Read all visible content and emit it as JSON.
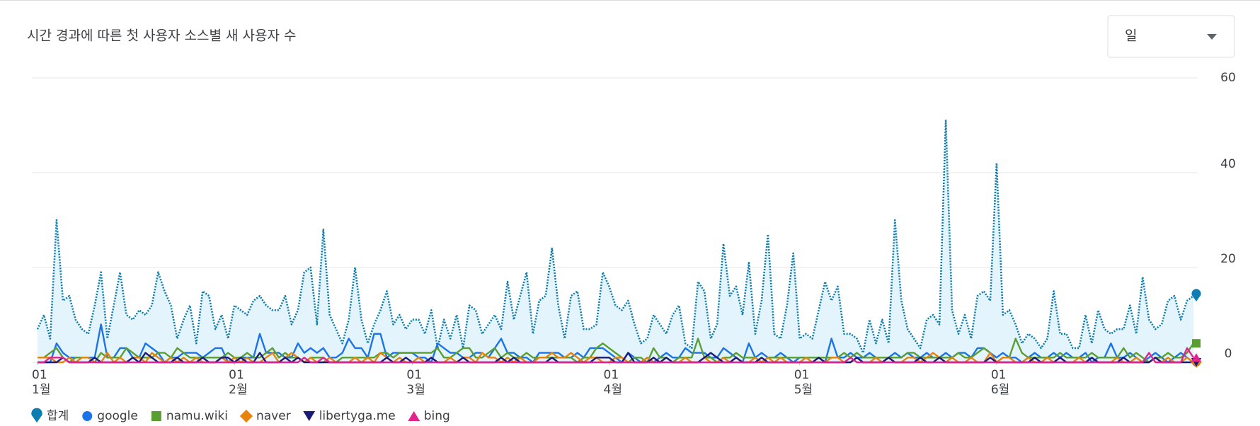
{
  "chart_data": {
    "type": "line",
    "title": "시간 경과에 따른 첫 사용자 소스별 새 사용자 수",
    "dropdown": "일",
    "categories": [
      "01-01",
      "01-02",
      "01-03",
      "01-04",
      "01-05",
      "01-06",
      "01-07",
      "01-08",
      "01-09",
      "01-10",
      "01-11",
      "01-12",
      "01-13",
      "01-14",
      "01-15",
      "01-16",
      "01-17",
      "01-18",
      "01-19",
      "01-20",
      "01-21",
      "01-22",
      "01-23",
      "01-24",
      "01-25",
      "01-26",
      "01-27",
      "01-28",
      "01-29",
      "01-30",
      "01-31",
      "02-01",
      "02-02",
      "02-03",
      "02-04",
      "02-05",
      "02-06",
      "02-07",
      "02-08",
      "02-09",
      "02-10",
      "02-11",
      "02-12",
      "02-13",
      "02-14",
      "02-15",
      "02-16",
      "02-17",
      "02-18",
      "02-19",
      "02-20",
      "02-21",
      "02-22",
      "02-23",
      "02-24",
      "02-25",
      "02-26",
      "02-27",
      "02-28",
      "03-01",
      "03-02",
      "03-03",
      "03-04",
      "03-05",
      "03-06",
      "03-07",
      "03-08",
      "03-09",
      "03-10",
      "03-11",
      "03-12",
      "03-13",
      "03-14",
      "03-15",
      "03-16",
      "03-17",
      "03-18",
      "03-19",
      "03-20",
      "03-21",
      "03-22",
      "03-23",
      "03-24",
      "03-25",
      "03-26",
      "03-27",
      "03-28",
      "03-29",
      "03-30",
      "03-31",
      "04-01",
      "04-02",
      "04-03",
      "04-04",
      "04-05",
      "04-06",
      "04-07",
      "04-08",
      "04-09",
      "04-10",
      "04-11",
      "04-12",
      "04-13",
      "04-14",
      "04-15",
      "04-16",
      "04-17",
      "04-18",
      "04-19",
      "04-20",
      "04-21",
      "04-22",
      "04-23",
      "04-24",
      "04-25",
      "04-26",
      "04-27",
      "04-28",
      "04-29",
      "04-30",
      "05-01",
      "05-02",
      "05-03",
      "05-04",
      "05-05",
      "05-06",
      "05-07",
      "05-08",
      "05-09",
      "05-10",
      "05-11",
      "05-12",
      "05-13",
      "05-14",
      "05-15",
      "05-16",
      "05-17",
      "05-18",
      "05-19",
      "05-20",
      "05-21",
      "05-22",
      "05-23",
      "05-24",
      "05-25",
      "05-26",
      "05-27",
      "05-28",
      "05-29",
      "05-30",
      "05-31",
      "06-01",
      "06-02",
      "06-03",
      "06-04",
      "06-05",
      "06-06",
      "06-07",
      "06-08",
      "06-09",
      "06-10",
      "06-11",
      "06-12",
      "06-13",
      "06-14",
      "06-15",
      "06-16",
      "06-17",
      "06-18",
      "06-19",
      "06-20",
      "06-21",
      "06-22",
      "06-23",
      "06-24",
      "06-25",
      "06-26",
      "06-27",
      "06-28",
      "06-29",
      "06-30",
      "07-01",
      "07-02"
    ],
    "xticks": [
      {
        "value": "01-01",
        "day": "01",
        "month": "1월"
      },
      {
        "value": "02-01",
        "day": "01",
        "month": "2월"
      },
      {
        "value": "03-01",
        "day": "01",
        "month": "3월"
      },
      {
        "value": "04-01",
        "day": "01",
        "month": "4월"
      },
      {
        "value": "05-01",
        "day": "01",
        "month": "5월"
      },
      {
        "value": "06-01",
        "day": "01",
        "month": "6월"
      }
    ],
    "ylim": [
      0,
      60
    ],
    "yticks": [
      0,
      20,
      40,
      60
    ],
    "grid": true,
    "series": [
      {
        "name": "합계",
        "color": "#0b7db0",
        "marker": "pin",
        "dotted": true,
        "area": "#e4f4fc",
        "values": [
          7,
          10,
          5,
          30,
          13,
          14,
          9,
          7,
          6,
          12,
          19,
          5,
          12,
          19,
          10,
          9,
          11,
          10,
          12,
          19,
          15,
          12,
          5,
          9,
          12,
          4,
          15,
          14,
          7,
          10,
          5,
          12,
          11,
          10,
          13,
          14,
          12,
          11,
          11,
          14,
          8,
          11,
          19,
          20,
          8,
          28,
          10,
          7,
          4,
          9,
          20,
          9,
          4,
          8,
          11,
          15,
          8,
          10,
          7,
          9,
          9,
          6,
          11,
          3,
          9,
          5,
          10,
          3,
          12,
          11,
          6,
          8,
          10,
          7,
          17,
          9,
          14,
          19,
          6,
          13,
          14,
          24,
          12,
          5,
          14,
          15,
          7,
          7,
          8,
          19,
          16,
          12,
          11,
          13,
          8,
          4,
          5,
          10,
          8,
          6,
          10,
          12,
          4,
          3,
          17,
          15,
          5,
          8,
          25,
          14,
          16,
          10,
          21,
          6,
          13,
          27,
          6,
          5,
          12,
          23,
          5,
          6,
          5,
          11,
          17,
          13,
          16,
          6,
          6,
          5,
          2,
          9,
          4,
          9,
          4,
          30,
          13,
          7,
          5,
          3,
          9,
          10,
          8,
          51,
          11,
          6,
          10,
          5,
          14,
          15,
          13,
          42,
          10,
          11,
          8,
          4,
          6,
          5,
          3,
          5,
          15,
          6,
          6,
          3,
          3,
          10,
          4,
          11,
          7,
          6,
          7,
          7,
          12,
          6,
          18,
          9,
          7,
          8,
          13,
          14,
          9,
          13,
          14
        ]
      },
      {
        "name": "google",
        "color": "#1a73e8",
        "marker": "circle",
        "values": [
          0,
          0,
          0,
          4,
          2,
          1,
          1,
          1,
          1,
          1,
          8,
          1,
          1,
          3,
          3,
          1,
          1,
          4,
          3,
          2,
          0,
          1,
          1,
          2,
          2,
          2,
          1,
          2,
          3,
          3,
          0,
          0,
          1,
          1,
          1,
          6,
          2,
          2,
          2,
          1,
          1,
          4,
          2,
          3,
          2,
          3,
          1,
          1,
          2,
          5,
          3,
          3,
          1,
          6,
          6,
          1,
          2,
          2,
          2,
          2,
          1,
          1,
          0,
          4,
          3,
          2,
          2,
          1,
          1,
          2,
          2,
          1,
          3,
          5,
          2,
          2,
          1,
          1,
          0,
          2,
          2,
          2,
          2,
          1,
          1,
          2,
          1,
          3,
          3,
          3,
          2,
          1,
          0,
          2,
          1,
          0,
          1,
          0,
          1,
          2,
          1,
          1,
          3,
          2,
          2,
          2,
          1,
          1,
          3,
          2,
          1,
          0,
          4,
          1,
          2,
          1,
          1,
          2,
          1,
          0,
          1,
          1,
          0,
          1,
          0,
          5,
          1,
          1,
          2,
          1,
          1,
          2,
          1,
          0,
          1,
          2,
          1,
          2,
          1,
          1,
          2,
          1,
          1,
          2,
          1,
          2,
          2,
          1,
          3,
          3,
          2,
          1,
          2,
          1,
          1,
          0,
          1,
          2,
          1,
          1,
          2,
          1,
          2,
          1,
          1,
          2,
          0,
          1,
          1,
          4,
          1,
          1,
          2,
          1,
          0,
          1,
          2,
          1,
          0,
          1,
          2,
          1,
          0
        ]
      },
      {
        "name": "namu.wiki",
        "color": "#5a9e32",
        "marker": "square",
        "values": [
          1,
          1,
          2,
          3,
          1,
          0,
          1,
          1,
          1,
          0,
          2,
          1,
          1,
          1,
          3,
          2,
          1,
          1,
          1,
          2,
          2,
          1,
          3,
          2,
          1,
          1,
          1,
          1,
          1,
          1,
          2,
          1,
          1,
          2,
          1,
          1,
          2,
          3,
          1,
          2,
          1,
          1,
          0,
          1,
          1,
          1,
          0,
          0,
          1,
          1,
          1,
          1,
          1,
          1,
          2,
          2,
          1,
          2,
          2,
          2,
          2,
          2,
          2,
          3,
          1,
          1,
          2,
          3,
          3,
          1,
          1,
          2,
          3,
          1,
          2,
          1,
          1,
          2,
          1,
          1,
          1,
          1,
          1,
          1,
          1,
          0,
          1,
          1,
          3,
          4,
          3,
          2,
          1,
          0,
          1,
          1,
          0,
          3,
          1,
          1,
          0,
          1,
          1,
          1,
          5,
          1,
          1,
          0,
          1,
          1,
          2,
          1,
          1,
          1,
          0,
          1,
          1,
          1,
          1,
          1,
          1,
          1,
          1,
          1,
          1,
          1,
          1,
          2,
          1,
          2,
          1,
          1,
          1,
          1,
          1,
          1,
          1,
          2,
          2,
          1,
          1,
          1,
          1,
          1,
          1,
          2,
          1,
          1,
          2,
          3,
          2,
          0,
          1,
          1,
          5,
          2,
          1,
          1,
          1,
          1,
          1,
          2,
          1,
          1,
          1,
          1,
          2,
          1,
          1,
          1,
          1,
          3,
          1,
          2,
          1,
          0,
          1,
          1,
          2,
          1,
          1,
          2,
          4
        ]
      },
      {
        "name": "naver",
        "color": "#e8830c",
        "marker": "diamond",
        "values": [
          1,
          1,
          1,
          0,
          0,
          1,
          0,
          1,
          1,
          0,
          0,
          2,
          0,
          1,
          0,
          1,
          1,
          0,
          2,
          1,
          0,
          1,
          0,
          1,
          0,
          1,
          0,
          0,
          0,
          1,
          0,
          1,
          0,
          1,
          0,
          0,
          1,
          2,
          0,
          1,
          2,
          1,
          0,
          1,
          0,
          0,
          1,
          0,
          0,
          0,
          1,
          0,
          1,
          0,
          2,
          1,
          0,
          1,
          0,
          0,
          1,
          0,
          1,
          0,
          0,
          1,
          0,
          1,
          1,
          0,
          2,
          1,
          1,
          0,
          1,
          0,
          1,
          0,
          0,
          1,
          1,
          2,
          1,
          1,
          2,
          1,
          0,
          1,
          1,
          0,
          0,
          1,
          1,
          0,
          0,
          0,
          1,
          0,
          0,
          1,
          0,
          0,
          1,
          0,
          0,
          1,
          0,
          0,
          1,
          0,
          1,
          0,
          0,
          1,
          0,
          1,
          0,
          1,
          0,
          0,
          0,
          1,
          0,
          0,
          0,
          1,
          1,
          0,
          0,
          1,
          0,
          0,
          1,
          0,
          1,
          0,
          0,
          1,
          1,
          0,
          1,
          2,
          1,
          0,
          1,
          0,
          0,
          1,
          0,
          0,
          2,
          0,
          1,
          1,
          0,
          0,
          1,
          0,
          0,
          1,
          0,
          1,
          0,
          0,
          1,
          0,
          1,
          0,
          0,
          0,
          1,
          0,
          0,
          1,
          0,
          0,
          1,
          0,
          1,
          0,
          0,
          1,
          0
        ]
      },
      {
        "name": "libertyga.me",
        "color": "#1b1b78",
        "marker": "triangle-down",
        "values": [
          0,
          0,
          0,
          0,
          1,
          0,
          0,
          0,
          0,
          1,
          0,
          0,
          0,
          0,
          0,
          1,
          0,
          2,
          1,
          0,
          0,
          0,
          1,
          0,
          0,
          0,
          1,
          0,
          0,
          1,
          1,
          0,
          1,
          0,
          0,
          2,
          0,
          0,
          0,
          1,
          0,
          1,
          0,
          0,
          0,
          0,
          0,
          0,
          0,
          0,
          0,
          0,
          0,
          0,
          0,
          1,
          0,
          0,
          1,
          0,
          0,
          0,
          1,
          0,
          0,
          0,
          0,
          1,
          0,
          0,
          0,
          0,
          0,
          1,
          0,
          1,
          0,
          0,
          0,
          0,
          0,
          1,
          0,
          0,
          0,
          0,
          0,
          0,
          1,
          1,
          1,
          0,
          0,
          2,
          0,
          0,
          0,
          1,
          0,
          1,
          0,
          0,
          0,
          0,
          0,
          1,
          2,
          1,
          0,
          0,
          1,
          0,
          0,
          0,
          1,
          0,
          0,
          0,
          0,
          0,
          0,
          0,
          0,
          1,
          0,
          0,
          0,
          0,
          0,
          1,
          0,
          0,
          0,
          0,
          1,
          0,
          0,
          0,
          0,
          1,
          0,
          0,
          1,
          0,
          0,
          0,
          0,
          0,
          0,
          0,
          1,
          0,
          0,
          0,
          0,
          0,
          0,
          1,
          0,
          0,
          0,
          1,
          0,
          0,
          0,
          0,
          1,
          0,
          0,
          0,
          0,
          1,
          0,
          0,
          0,
          0,
          1,
          0,
          0,
          0,
          0,
          0,
          0
        ]
      },
      {
        "name": "bing",
        "color": "#e2248c",
        "marker": "triangle-up",
        "values": [
          0,
          0,
          1,
          1,
          1,
          0,
          0,
          0,
          0,
          0,
          0,
          0,
          0,
          0,
          0,
          0,
          0,
          0,
          0,
          0,
          0,
          0,
          0,
          0,
          0,
          0,
          0,
          0,
          0,
          0,
          0,
          0,
          0,
          0,
          0,
          0,
          0,
          0,
          0,
          0,
          0,
          0,
          1,
          0,
          0,
          1,
          0,
          0,
          0,
          0,
          0,
          0,
          0,
          0,
          0,
          0,
          0,
          0,
          0,
          0,
          0,
          0,
          0,
          0,
          0,
          0,
          0,
          0,
          0,
          0,
          0,
          0,
          0,
          0,
          0,
          0,
          0,
          0,
          0,
          0,
          0,
          0,
          0,
          0,
          0,
          0,
          0,
          0,
          0,
          0,
          0,
          0,
          0,
          0,
          0,
          0,
          0,
          0,
          0,
          0,
          0,
          0,
          0,
          0,
          0,
          0,
          0,
          0,
          0,
          0,
          0,
          0,
          0,
          0,
          0,
          0,
          0,
          0,
          0,
          0,
          0,
          0,
          0,
          0,
          0,
          0,
          0,
          0,
          1,
          0,
          0,
          0,
          0,
          0,
          0,
          0,
          0,
          0,
          0,
          0,
          0,
          0,
          0,
          0,
          0,
          0,
          0,
          0,
          0,
          0,
          0,
          0,
          0,
          0,
          0,
          0,
          0,
          0,
          0,
          0,
          0,
          0,
          0,
          0,
          0,
          0,
          0,
          0,
          0,
          0,
          0,
          0,
          0,
          0,
          0,
          2,
          0,
          0,
          0,
          0,
          0,
          3,
          1
        ]
      }
    ]
  }
}
